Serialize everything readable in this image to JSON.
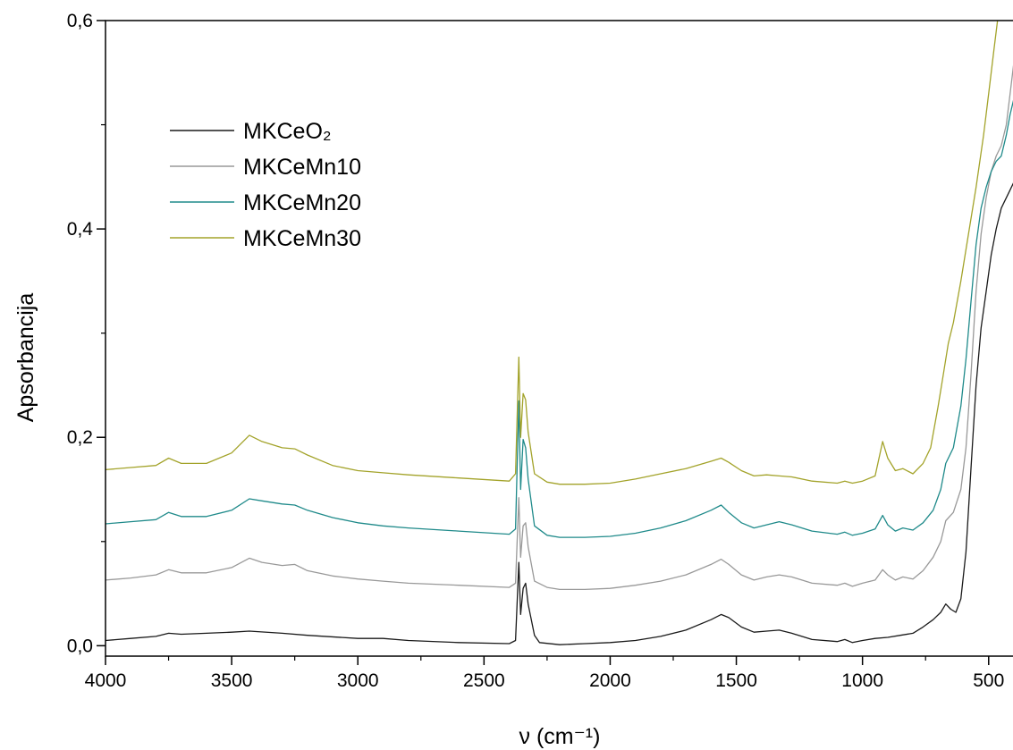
{
  "chart_data": {
    "type": "line",
    "title": "",
    "xlabel": "ν (cm⁻¹)",
    "ylabel": "Apsorbancija",
    "xlim": [
      4000,
      400
    ],
    "ylim": [
      -0.01,
      0.6
    ],
    "x_reversed": true,
    "xticks": [
      4000,
      3500,
      3000,
      2500,
      2000,
      1500,
      1000,
      500
    ],
    "xtick_labels": [
      "4000",
      "3500",
      "3000",
      "2500",
      "2000",
      "1500",
      "1000",
      "500"
    ],
    "yticks": [
      0.0,
      0.2,
      0.4,
      0.6
    ],
    "ytick_labels": [
      "0,0",
      "0,2",
      "0,4",
      "0,6"
    ],
    "grid": false,
    "legend_position": "top-left",
    "series": [
      {
        "name": "MKCeO₂",
        "color": "#1a1a1a",
        "points": [
          [
            4000,
            0.005
          ],
          [
            3900,
            0.007
          ],
          [
            3800,
            0.009
          ],
          [
            3750,
            0.012
          ],
          [
            3700,
            0.011
          ],
          [
            3600,
            0.012
          ],
          [
            3500,
            0.013
          ],
          [
            3430,
            0.014
          ],
          [
            3300,
            0.012
          ],
          [
            3200,
            0.01
          ],
          [
            3000,
            0.007
          ],
          [
            2900,
            0.007
          ],
          [
            2800,
            0.005
          ],
          [
            2600,
            0.003
          ],
          [
            2400,
            0.002
          ],
          [
            2375,
            0.005
          ],
          [
            2362,
            0.08
          ],
          [
            2355,
            0.03
          ],
          [
            2345,
            0.055
          ],
          [
            2335,
            0.06
          ],
          [
            2325,
            0.04
          ],
          [
            2300,
            0.01
          ],
          [
            2280,
            0.003
          ],
          [
            2200,
            0.001
          ],
          [
            2100,
            0.002
          ],
          [
            2000,
            0.003
          ],
          [
            1900,
            0.005
          ],
          [
            1800,
            0.009
          ],
          [
            1700,
            0.015
          ],
          [
            1600,
            0.025
          ],
          [
            1560,
            0.03
          ],
          [
            1530,
            0.027
          ],
          [
            1480,
            0.018
          ],
          [
            1430,
            0.013
          ],
          [
            1380,
            0.014
          ],
          [
            1330,
            0.015
          ],
          [
            1280,
            0.012
          ],
          [
            1200,
            0.006
          ],
          [
            1100,
            0.004
          ],
          [
            1070,
            0.006
          ],
          [
            1040,
            0.003
          ],
          [
            1000,
            0.005
          ],
          [
            950,
            0.007
          ],
          [
            900,
            0.008
          ],
          [
            850,
            0.01
          ],
          [
            800,
            0.012
          ],
          [
            760,
            0.018
          ],
          [
            720,
            0.025
          ],
          [
            690,
            0.032
          ],
          [
            670,
            0.04
          ],
          [
            650,
            0.035
          ],
          [
            630,
            0.032
          ],
          [
            610,
            0.045
          ],
          [
            590,
            0.09
          ],
          [
            570,
            0.17
          ],
          [
            550,
            0.25
          ],
          [
            530,
            0.305
          ],
          [
            510,
            0.34
          ],
          [
            490,
            0.375
          ],
          [
            470,
            0.4
          ],
          [
            450,
            0.42
          ],
          [
            420,
            0.435
          ],
          [
            400,
            0.445
          ]
        ]
      },
      {
        "name": "MKCeMn10",
        "color": "#999999",
        "points": [
          [
            4000,
            0.063
          ],
          [
            3900,
            0.065
          ],
          [
            3800,
            0.068
          ],
          [
            3750,
            0.073
          ],
          [
            3700,
            0.07
          ],
          [
            3600,
            0.07
          ],
          [
            3500,
            0.075
          ],
          [
            3430,
            0.084
          ],
          [
            3380,
            0.08
          ],
          [
            3300,
            0.077
          ],
          [
            3250,
            0.078
          ],
          [
            3200,
            0.072
          ],
          [
            3100,
            0.067
          ],
          [
            3000,
            0.064
          ],
          [
            2900,
            0.062
          ],
          [
            2800,
            0.06
          ],
          [
            2600,
            0.058
          ],
          [
            2400,
            0.056
          ],
          [
            2375,
            0.06
          ],
          [
            2362,
            0.142
          ],
          [
            2355,
            0.085
          ],
          [
            2345,
            0.115
          ],
          [
            2335,
            0.118
          ],
          [
            2325,
            0.095
          ],
          [
            2300,
            0.062
          ],
          [
            2250,
            0.056
          ],
          [
            2200,
            0.054
          ],
          [
            2100,
            0.054
          ],
          [
            2000,
            0.055
          ],
          [
            1900,
            0.058
          ],
          [
            1800,
            0.062
          ],
          [
            1700,
            0.068
          ],
          [
            1600,
            0.078
          ],
          [
            1560,
            0.083
          ],
          [
            1530,
            0.078
          ],
          [
            1480,
            0.068
          ],
          [
            1430,
            0.063
          ],
          [
            1380,
            0.066
          ],
          [
            1330,
            0.068
          ],
          [
            1280,
            0.066
          ],
          [
            1200,
            0.06
          ],
          [
            1100,
            0.058
          ],
          [
            1070,
            0.06
          ],
          [
            1040,
            0.057
          ],
          [
            1000,
            0.06
          ],
          [
            950,
            0.063
          ],
          [
            920,
            0.073
          ],
          [
            900,
            0.068
          ],
          [
            870,
            0.063
          ],
          [
            840,
            0.066
          ],
          [
            800,
            0.064
          ],
          [
            760,
            0.072
          ],
          [
            720,
            0.085
          ],
          [
            690,
            0.1
          ],
          [
            670,
            0.12
          ],
          [
            640,
            0.128
          ],
          [
            610,
            0.15
          ],
          [
            590,
            0.19
          ],
          [
            570,
            0.26
          ],
          [
            550,
            0.34
          ],
          [
            530,
            0.395
          ],
          [
            510,
            0.43
          ],
          [
            490,
            0.455
          ],
          [
            470,
            0.47
          ],
          [
            450,
            0.48
          ],
          [
            430,
            0.5
          ],
          [
            415,
            0.53
          ],
          [
            400,
            0.56
          ]
        ]
      },
      {
        "name": "MKCeMn20",
        "color": "#1f8a8a",
        "points": [
          [
            4000,
            0.117
          ],
          [
            3900,
            0.119
          ],
          [
            3800,
            0.121
          ],
          [
            3750,
            0.128
          ],
          [
            3700,
            0.124
          ],
          [
            3600,
            0.124
          ],
          [
            3500,
            0.13
          ],
          [
            3430,
            0.141
          ],
          [
            3380,
            0.139
          ],
          [
            3300,
            0.136
          ],
          [
            3250,
            0.135
          ],
          [
            3200,
            0.13
          ],
          [
            3100,
            0.123
          ],
          [
            3000,
            0.118
          ],
          [
            2900,
            0.115
          ],
          [
            2800,
            0.113
          ],
          [
            2600,
            0.11
          ],
          [
            2400,
            0.107
          ],
          [
            2375,
            0.112
          ],
          [
            2362,
            0.235
          ],
          [
            2355,
            0.15
          ],
          [
            2345,
            0.198
          ],
          [
            2335,
            0.19
          ],
          [
            2325,
            0.16
          ],
          [
            2300,
            0.115
          ],
          [
            2250,
            0.106
          ],
          [
            2200,
            0.104
          ],
          [
            2100,
            0.104
          ],
          [
            2000,
            0.105
          ],
          [
            1900,
            0.108
          ],
          [
            1800,
            0.113
          ],
          [
            1700,
            0.12
          ],
          [
            1600,
            0.13
          ],
          [
            1560,
            0.135
          ],
          [
            1530,
            0.128
          ],
          [
            1480,
            0.118
          ],
          [
            1430,
            0.113
          ],
          [
            1380,
            0.116
          ],
          [
            1330,
            0.119
          ],
          [
            1280,
            0.116
          ],
          [
            1200,
            0.11
          ],
          [
            1100,
            0.107
          ],
          [
            1070,
            0.109
          ],
          [
            1040,
            0.106
          ],
          [
            1000,
            0.108
          ],
          [
            950,
            0.112
          ],
          [
            920,
            0.125
          ],
          [
            900,
            0.116
          ],
          [
            870,
            0.11
          ],
          [
            840,
            0.113
          ],
          [
            800,
            0.111
          ],
          [
            760,
            0.118
          ],
          [
            720,
            0.13
          ],
          [
            690,
            0.15
          ],
          [
            670,
            0.175
          ],
          [
            640,
            0.19
          ],
          [
            610,
            0.23
          ],
          [
            590,
            0.275
          ],
          [
            570,
            0.33
          ],
          [
            550,
            0.385
          ],
          [
            530,
            0.42
          ],
          [
            510,
            0.44
          ],
          [
            490,
            0.455
          ],
          [
            470,
            0.465
          ],
          [
            450,
            0.47
          ],
          [
            430,
            0.49
          ],
          [
            415,
            0.51
          ],
          [
            400,
            0.525
          ]
        ]
      },
      {
        "name": "MKCeMn30",
        "color": "#a3a32a",
        "points": [
          [
            4000,
            0.169
          ],
          [
            3900,
            0.171
          ],
          [
            3800,
            0.173
          ],
          [
            3750,
            0.18
          ],
          [
            3700,
            0.175
          ],
          [
            3600,
            0.175
          ],
          [
            3500,
            0.185
          ],
          [
            3430,
            0.202
          ],
          [
            3380,
            0.196
          ],
          [
            3300,
            0.19
          ],
          [
            3250,
            0.189
          ],
          [
            3200,
            0.183
          ],
          [
            3100,
            0.173
          ],
          [
            3000,
            0.168
          ],
          [
            2900,
            0.166
          ],
          [
            2800,
            0.164
          ],
          [
            2600,
            0.161
          ],
          [
            2400,
            0.158
          ],
          [
            2375,
            0.165
          ],
          [
            2362,
            0.277
          ],
          [
            2355,
            0.2
          ],
          [
            2345,
            0.242
          ],
          [
            2335,
            0.236
          ],
          [
            2325,
            0.205
          ],
          [
            2300,
            0.165
          ],
          [
            2250,
            0.157
          ],
          [
            2200,
            0.155
          ],
          [
            2100,
            0.155
          ],
          [
            2000,
            0.156
          ],
          [
            1900,
            0.16
          ],
          [
            1800,
            0.165
          ],
          [
            1700,
            0.17
          ],
          [
            1600,
            0.177
          ],
          [
            1560,
            0.18
          ],
          [
            1530,
            0.176
          ],
          [
            1480,
            0.168
          ],
          [
            1430,
            0.163
          ],
          [
            1380,
            0.164
          ],
          [
            1330,
            0.163
          ],
          [
            1280,
            0.162
          ],
          [
            1200,
            0.158
          ],
          [
            1100,
            0.156
          ],
          [
            1070,
            0.158
          ],
          [
            1040,
            0.156
          ],
          [
            1000,
            0.158
          ],
          [
            950,
            0.163
          ],
          [
            920,
            0.196
          ],
          [
            900,
            0.18
          ],
          [
            870,
            0.168
          ],
          [
            840,
            0.17
          ],
          [
            800,
            0.165
          ],
          [
            760,
            0.175
          ],
          [
            730,
            0.19
          ],
          [
            700,
            0.23
          ],
          [
            680,
            0.26
          ],
          [
            660,
            0.29
          ],
          [
            640,
            0.31
          ],
          [
            610,
            0.35
          ],
          [
            580,
            0.395
          ],
          [
            550,
            0.44
          ],
          [
            520,
            0.49
          ],
          [
            500,
            0.53
          ],
          [
            480,
            0.57
          ],
          [
            465,
            0.6
          ],
          [
            455,
            0.64
          ]
        ]
      }
    ]
  }
}
